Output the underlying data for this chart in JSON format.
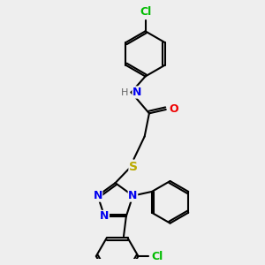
{
  "bg_color": "#eeeeee",
  "bond_color": "#000000",
  "atom_colors": {
    "N": "#0000ee",
    "O": "#ee0000",
    "S": "#bbaa00",
    "Cl": "#00bb00",
    "H": "#666666",
    "C": "#000000"
  },
  "font_size": 9,
  "line_width": 1.5
}
